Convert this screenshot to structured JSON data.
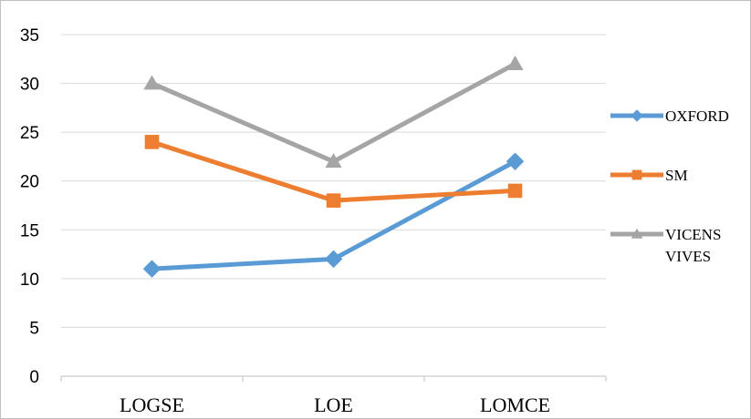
{
  "chart_data": {
    "type": "line",
    "categories": [
      "LOGSE",
      "LOE",
      "LOMCE"
    ],
    "ylim": [
      0,
      35
    ],
    "yticks": [
      0,
      5,
      10,
      15,
      20,
      25,
      30,
      35
    ],
    "grid": true,
    "legend_position": "right",
    "series": [
      {
        "name": "OXFORD",
        "values": [
          11,
          12,
          22
        ],
        "color": "#5b9bd5",
        "marker": "diamond-icon"
      },
      {
        "name": "SM",
        "values": [
          24,
          18,
          19
        ],
        "color": "#ed7d31",
        "marker": "square-icon"
      },
      {
        "name": "VICENS VIVES",
        "name_lines": [
          "VICENS",
          "VIVES"
        ],
        "values": [
          30,
          22,
          32
        ],
        "color": "#a5a5a5",
        "marker": "triangle-icon"
      }
    ]
  }
}
